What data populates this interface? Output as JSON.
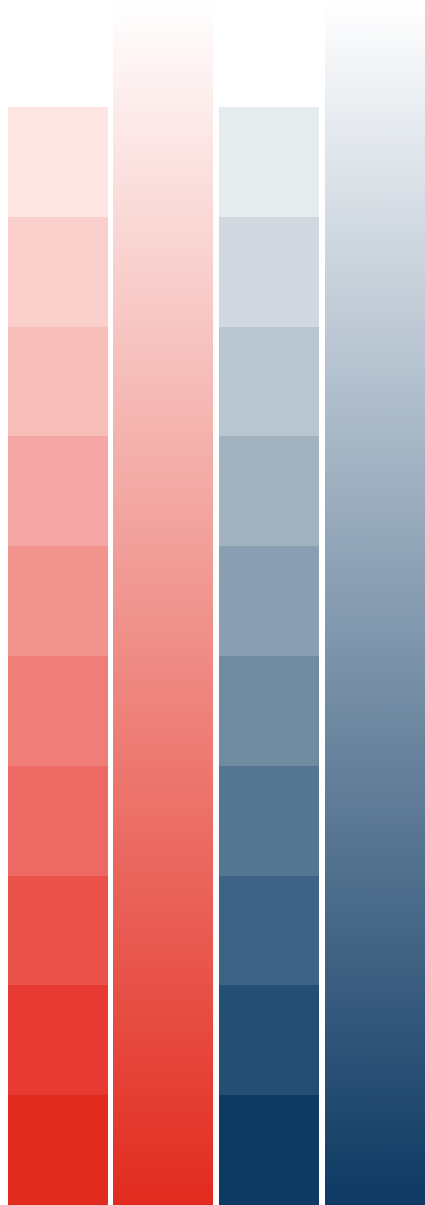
{
  "palettes": {
    "red": {
      "steps": [
        "#fde5e2",
        "#fbcfcc",
        "#f7bdb9",
        "#f5a7a6",
        "#f2948d",
        "#ef7e79",
        "#ed6963",
        "#ea5249",
        "#e63a33",
        "#e22b1f"
      ],
      "gradient_from": "#ffffff",
      "gradient_to": "#e22b1f"
    },
    "blue": {
      "steps": [
        "#e6ebee",
        "#d1d8df",
        "#b9c5cf",
        "#a3b2bf",
        "#8a9fb1",
        "#6f8ba0",
        "#557690",
        "#3f6384",
        "#244e74",
        "#0e3963"
      ],
      "gradient_from": "#ffffff",
      "gradient_to": "#0e3963"
    }
  }
}
